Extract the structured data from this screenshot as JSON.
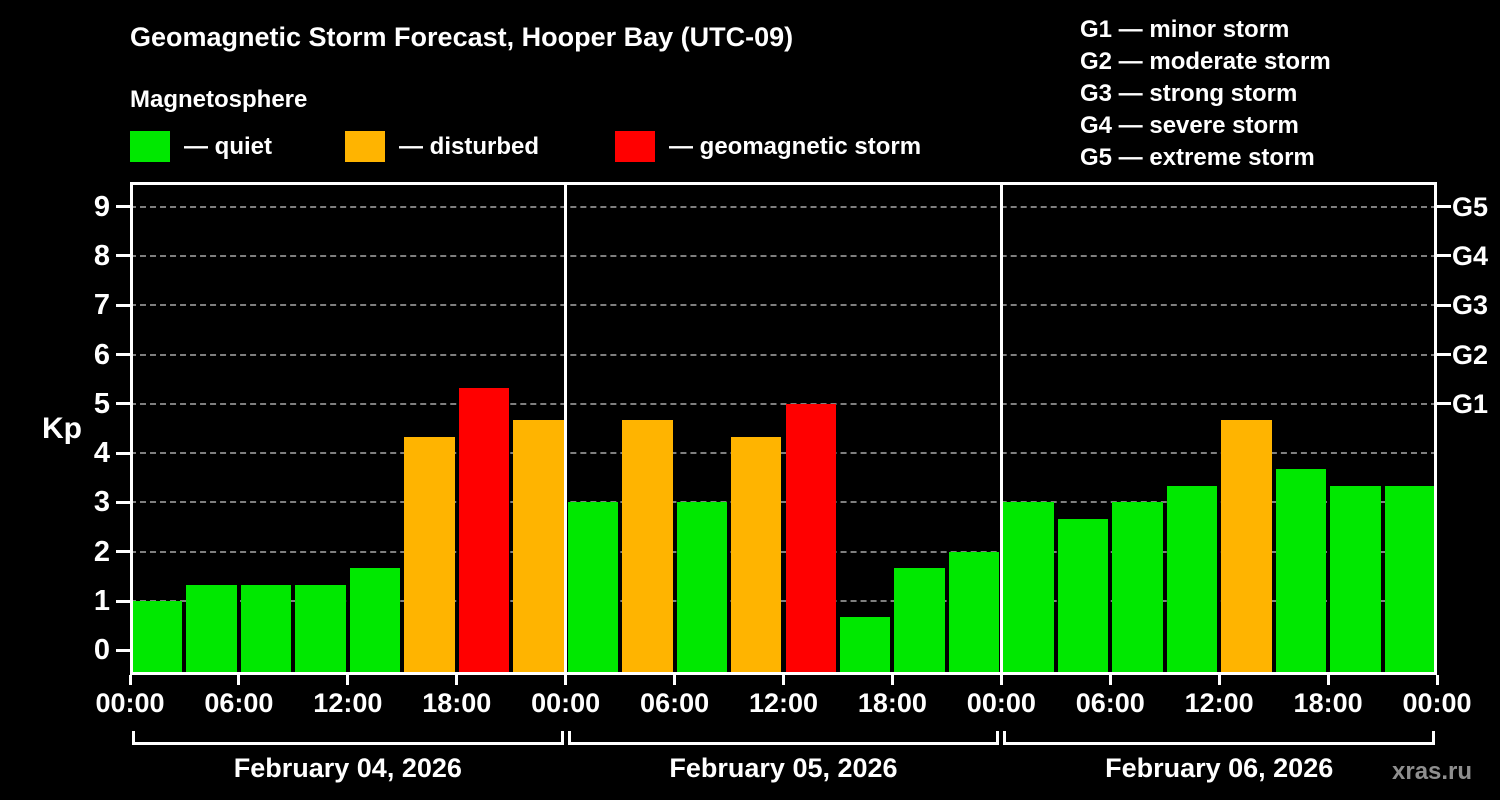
{
  "title": "Geomagnetic Storm Forecast, Hooper Bay (UTC-09)",
  "subtitle": "Magnetosphere",
  "watermark": "xras.ru",
  "legend": {
    "items": [
      {
        "id": "quiet",
        "label": "— quiet",
        "color": "#00e800"
      },
      {
        "id": "disturbed",
        "label": "— disturbed",
        "color": "#ffb400"
      },
      {
        "id": "storm",
        "label": "— geomagnetic storm",
        "color": "#ff0000"
      }
    ]
  },
  "g_scale_legend": [
    "G1 — minor storm",
    "G2 — moderate storm",
    "G3 — strong storm",
    "G4 — severe storm",
    "G5 — extreme storm"
  ],
  "chart_data": {
    "type": "bar",
    "title": "Geomagnetic Storm Forecast, Hooper Bay (UTC-09)",
    "ylabel": "Kp",
    "ylim": [
      -0.5,
      9.5
    ],
    "yticks": [
      0,
      1,
      2,
      3,
      4,
      5,
      6,
      7,
      8,
      9
    ],
    "right_axis": [
      {
        "kp": 5,
        "label": "G1"
      },
      {
        "kp": 6,
        "label": "G2"
      },
      {
        "kp": 7,
        "label": "G3"
      },
      {
        "kp": 8,
        "label": "G4"
      },
      {
        "kp": 9,
        "label": "G5"
      }
    ],
    "grid": {
      "horizontal": "dashed",
      "color": "#7f7f7f"
    },
    "hours_per_bar": 3,
    "x_range_hours": [
      0,
      72
    ],
    "x_tick_labels": [
      "00:00",
      "06:00",
      "12:00",
      "18:00",
      "00:00",
      "06:00",
      "12:00",
      "18:00",
      "00:00",
      "06:00",
      "12:00",
      "18:00",
      "00:00"
    ],
    "status_colors": {
      "quiet": "#00e800",
      "disturbed": "#ffb400",
      "storm": "#ff0000"
    },
    "days": [
      {
        "date": "February 04, 2026",
        "values": [
          1.0,
          1.33,
          1.33,
          1.33,
          1.67,
          4.33,
          5.33,
          4.67
        ],
        "status": [
          "quiet",
          "quiet",
          "quiet",
          "quiet",
          "quiet",
          "disturbed",
          "storm",
          "disturbed"
        ]
      },
      {
        "date": "February 05, 2026",
        "values": [
          3.0,
          4.67,
          3.0,
          4.33,
          5.0,
          0.67,
          1.67,
          2.0
        ],
        "status": [
          "quiet",
          "disturbed",
          "quiet",
          "disturbed",
          "storm",
          "quiet",
          "quiet",
          "quiet"
        ]
      },
      {
        "date": "February 06, 2026",
        "values": [
          3.0,
          2.67,
          3.0,
          3.33,
          4.67,
          3.67,
          3.33,
          3.33
        ],
        "status": [
          "quiet",
          "quiet",
          "quiet",
          "quiet",
          "disturbed",
          "quiet",
          "quiet",
          "quiet"
        ]
      }
    ]
  }
}
